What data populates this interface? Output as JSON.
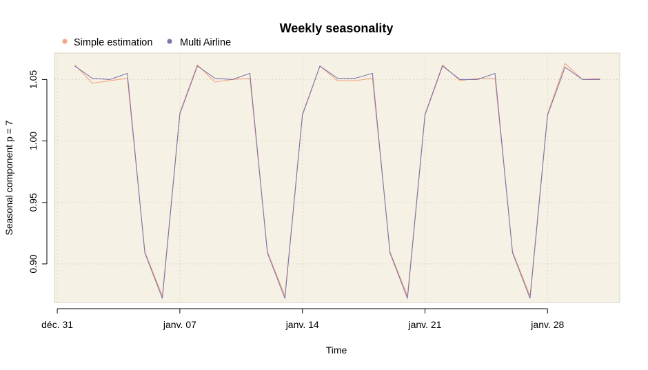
{
  "chart_data": {
    "type": "line",
    "title": "Weekly seasonality",
    "xlabel": "Time",
    "ylabel": "Seasonal component p = 7",
    "x_ticks": [
      "déc. 31",
      "janv. 07",
      "janv. 14",
      "janv. 21",
      "janv. 28"
    ],
    "y_ticks": [
      "0.90",
      "0.95",
      "1.00",
      "1.05"
    ],
    "ylim": [
      0.868,
      1.071
    ],
    "grid": true,
    "legend_position": "top-left",
    "x": [
      "2018-01-01",
      "2018-01-02",
      "2018-01-03",
      "2018-01-04",
      "2018-01-05",
      "2018-01-06",
      "2018-01-07",
      "2018-01-08",
      "2018-01-09",
      "2018-01-10",
      "2018-01-11",
      "2018-01-12",
      "2018-01-13",
      "2018-01-14",
      "2018-01-15",
      "2018-01-16",
      "2018-01-17",
      "2018-01-18",
      "2018-01-19",
      "2018-01-20",
      "2018-01-21",
      "2018-01-22",
      "2018-01-23",
      "2018-01-24",
      "2018-01-25",
      "2018-01-26",
      "2018-01-27",
      "2018-01-28",
      "2018-01-29",
      "2018-01-30",
      "2018-01-31"
    ],
    "series": [
      {
        "name": "Simple estimation",
        "color": "#f4a582",
        "values": [
          1.062,
          1.047,
          1.049,
          1.051,
          0.91,
          0.874,
          1.023,
          1.062,
          1.048,
          1.05,
          1.051,
          0.91,
          0.874,
          1.022,
          1.061,
          1.049,
          1.049,
          1.051,
          0.91,
          0.874,
          1.022,
          1.062,
          1.049,
          1.051,
          1.051,
          0.91,
          0.874,
          1.022,
          1.063,
          1.05,
          1.051
        ]
      },
      {
        "name": "Multi Airline",
        "color": "#8073ac",
        "values": [
          1.061,
          1.051,
          1.05,
          1.055,
          0.909,
          0.872,
          1.022,
          1.061,
          1.051,
          1.05,
          1.055,
          0.909,
          0.872,
          1.021,
          1.061,
          1.051,
          1.051,
          1.055,
          0.909,
          0.872,
          1.021,
          1.061,
          1.05,
          1.05,
          1.055,
          0.909,
          0.872,
          1.021,
          1.06,
          1.05,
          1.05
        ]
      }
    ]
  },
  "colors": {
    "panel_background": "#f5f2e5",
    "panel_border": "#d8d4c2",
    "grid": "#dcd8c4"
  }
}
